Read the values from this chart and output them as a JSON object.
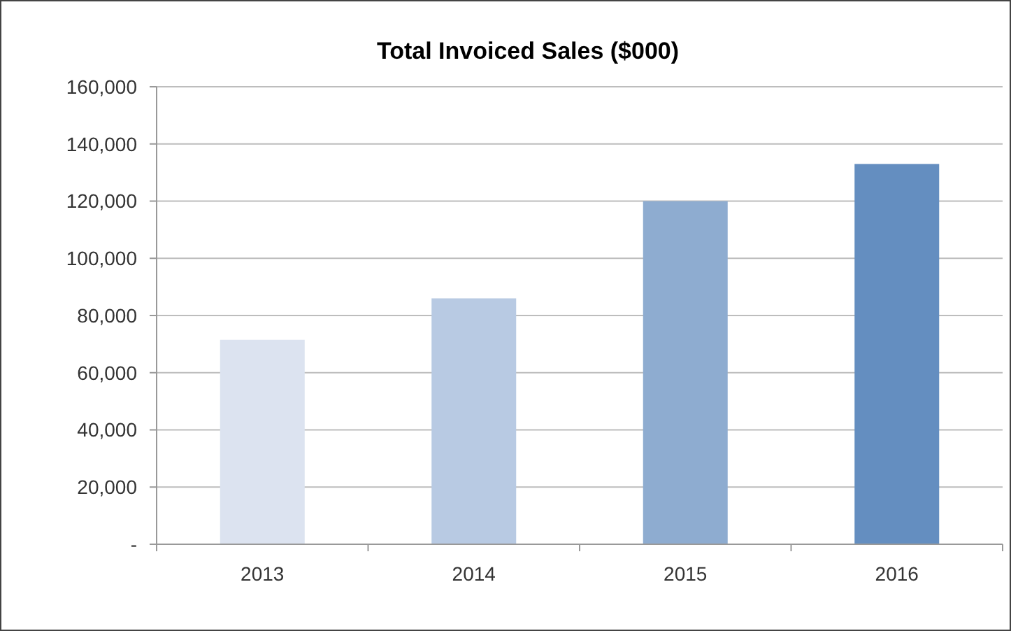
{
  "chart_data": {
    "type": "bar",
    "title": "Total Invoiced Sales ($000)",
    "categories": [
      "2013",
      "2014",
      "2015",
      "2016"
    ],
    "values": [
      71500,
      86000,
      120000,
      133000
    ],
    "colors": [
      "#dce3f0",
      "#b8cae3",
      "#8eacd0",
      "#648ec0"
    ],
    "ylim": [
      0,
      160000
    ],
    "yticks": [
      {
        "value": 0,
        "label": "-"
      },
      {
        "value": 20000,
        "label": "20,000"
      },
      {
        "value": 40000,
        "label": "40,000"
      },
      {
        "value": 60000,
        "label": "60,000"
      },
      {
        "value": 80000,
        "label": "80,000"
      },
      {
        "value": 100000,
        "label": "100,000"
      },
      {
        "value": 120000,
        "label": "120,000"
      },
      {
        "value": 140000,
        "label": "140,000"
      },
      {
        "value": 160000,
        "label": "160,000"
      }
    ],
    "grid": "y"
  }
}
